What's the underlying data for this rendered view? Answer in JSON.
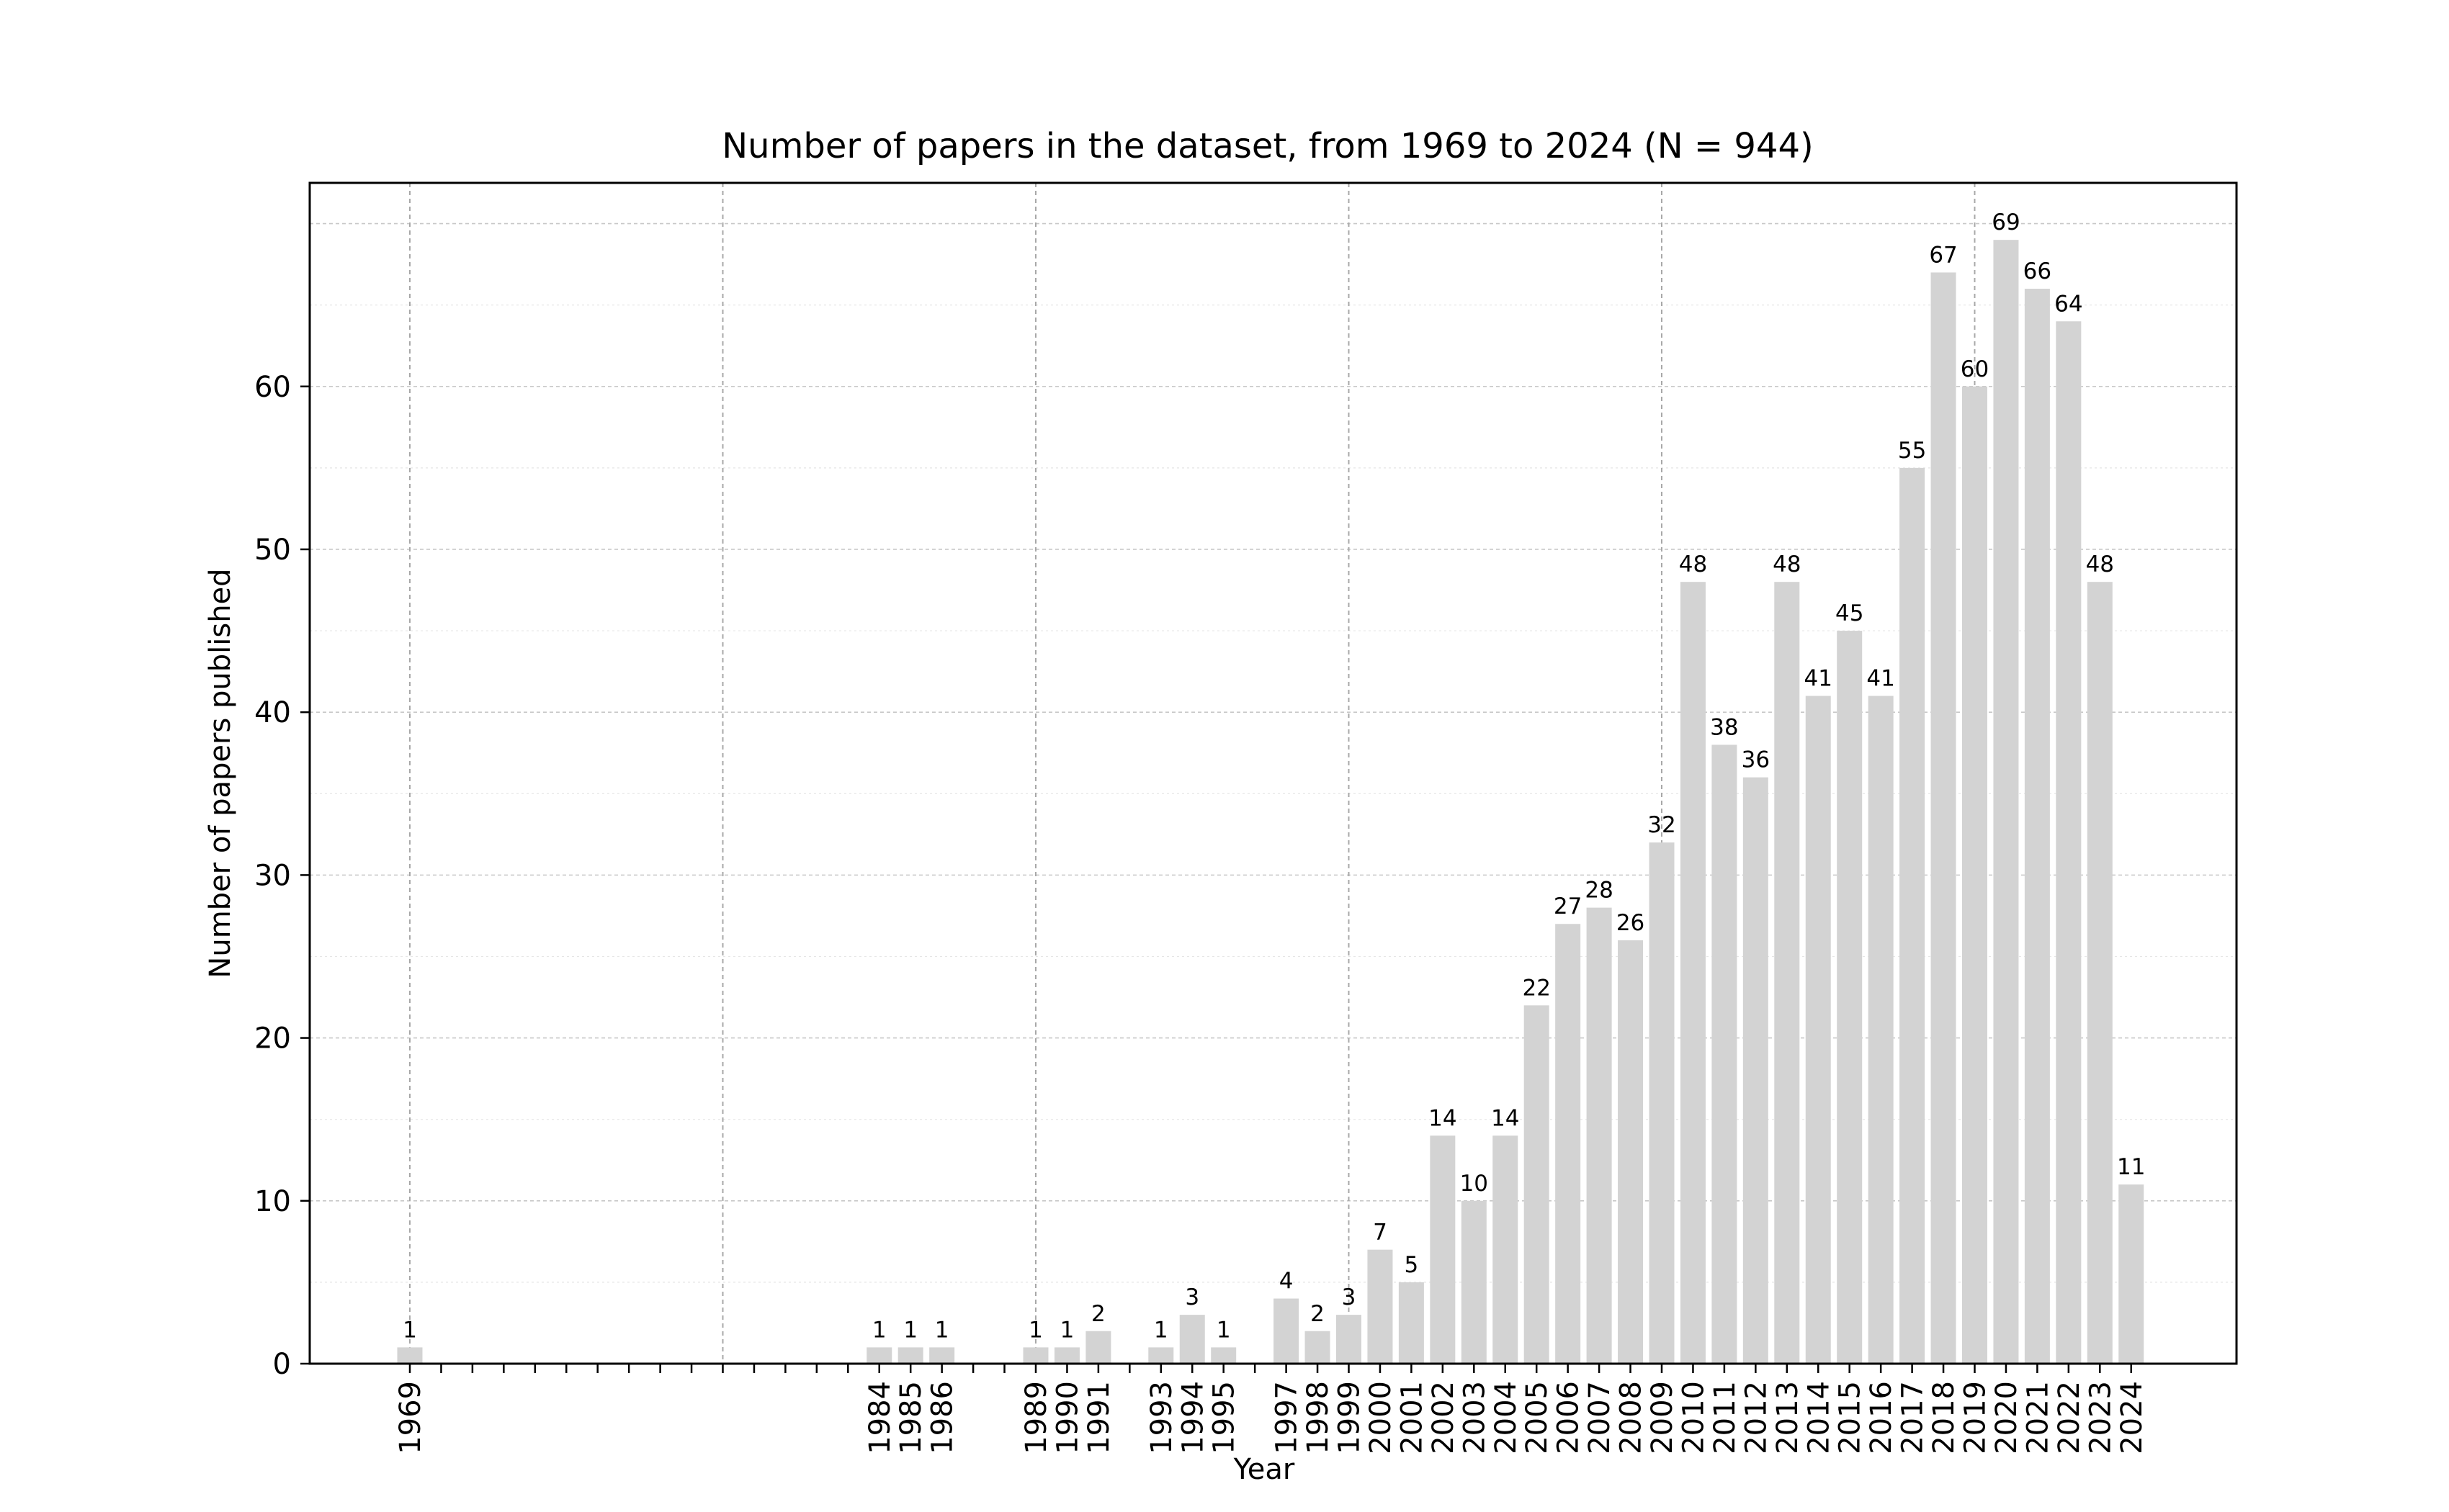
{
  "chart_data": {
    "type": "bar",
    "title": "Number of papers in the dataset, from 1969 to 2024 (N = 944)",
    "xlabel": "Year",
    "ylabel": "Number of papers published",
    "ylim": [
      0,
      72.5
    ],
    "yticks": [
      0,
      10,
      20,
      30,
      40,
      50,
      60
    ],
    "grid": true,
    "bar_color": "#d3d3d3",
    "decade_lines": [
      1969,
      1979,
      1989,
      1999,
      2009,
      2019
    ],
    "xrange": [
      1969,
      2024
    ],
    "categories": [
      "1969",
      "1984",
      "1985",
      "1986",
      "1989",
      "1990",
      "1991",
      "1993",
      "1994",
      "1995",
      "1997",
      "1998",
      "1999",
      "2000",
      "2001",
      "2002",
      "2003",
      "2004",
      "2005",
      "2006",
      "2007",
      "2008",
      "2009",
      "2010",
      "2011",
      "2012",
      "2013",
      "2014",
      "2015",
      "2016",
      "2017",
      "2018",
      "2019",
      "2020",
      "2021",
      "2022",
      "2023",
      "2024"
    ],
    "values": [
      1,
      1,
      1,
      1,
      1,
      1,
      2,
      1,
      3,
      1,
      4,
      2,
      3,
      7,
      5,
      14,
      10,
      14,
      22,
      27,
      28,
      26,
      32,
      48,
      38,
      36,
      48,
      41,
      45,
      41,
      55,
      67,
      60,
      69,
      66,
      64,
      48,
      11
    ]
  }
}
